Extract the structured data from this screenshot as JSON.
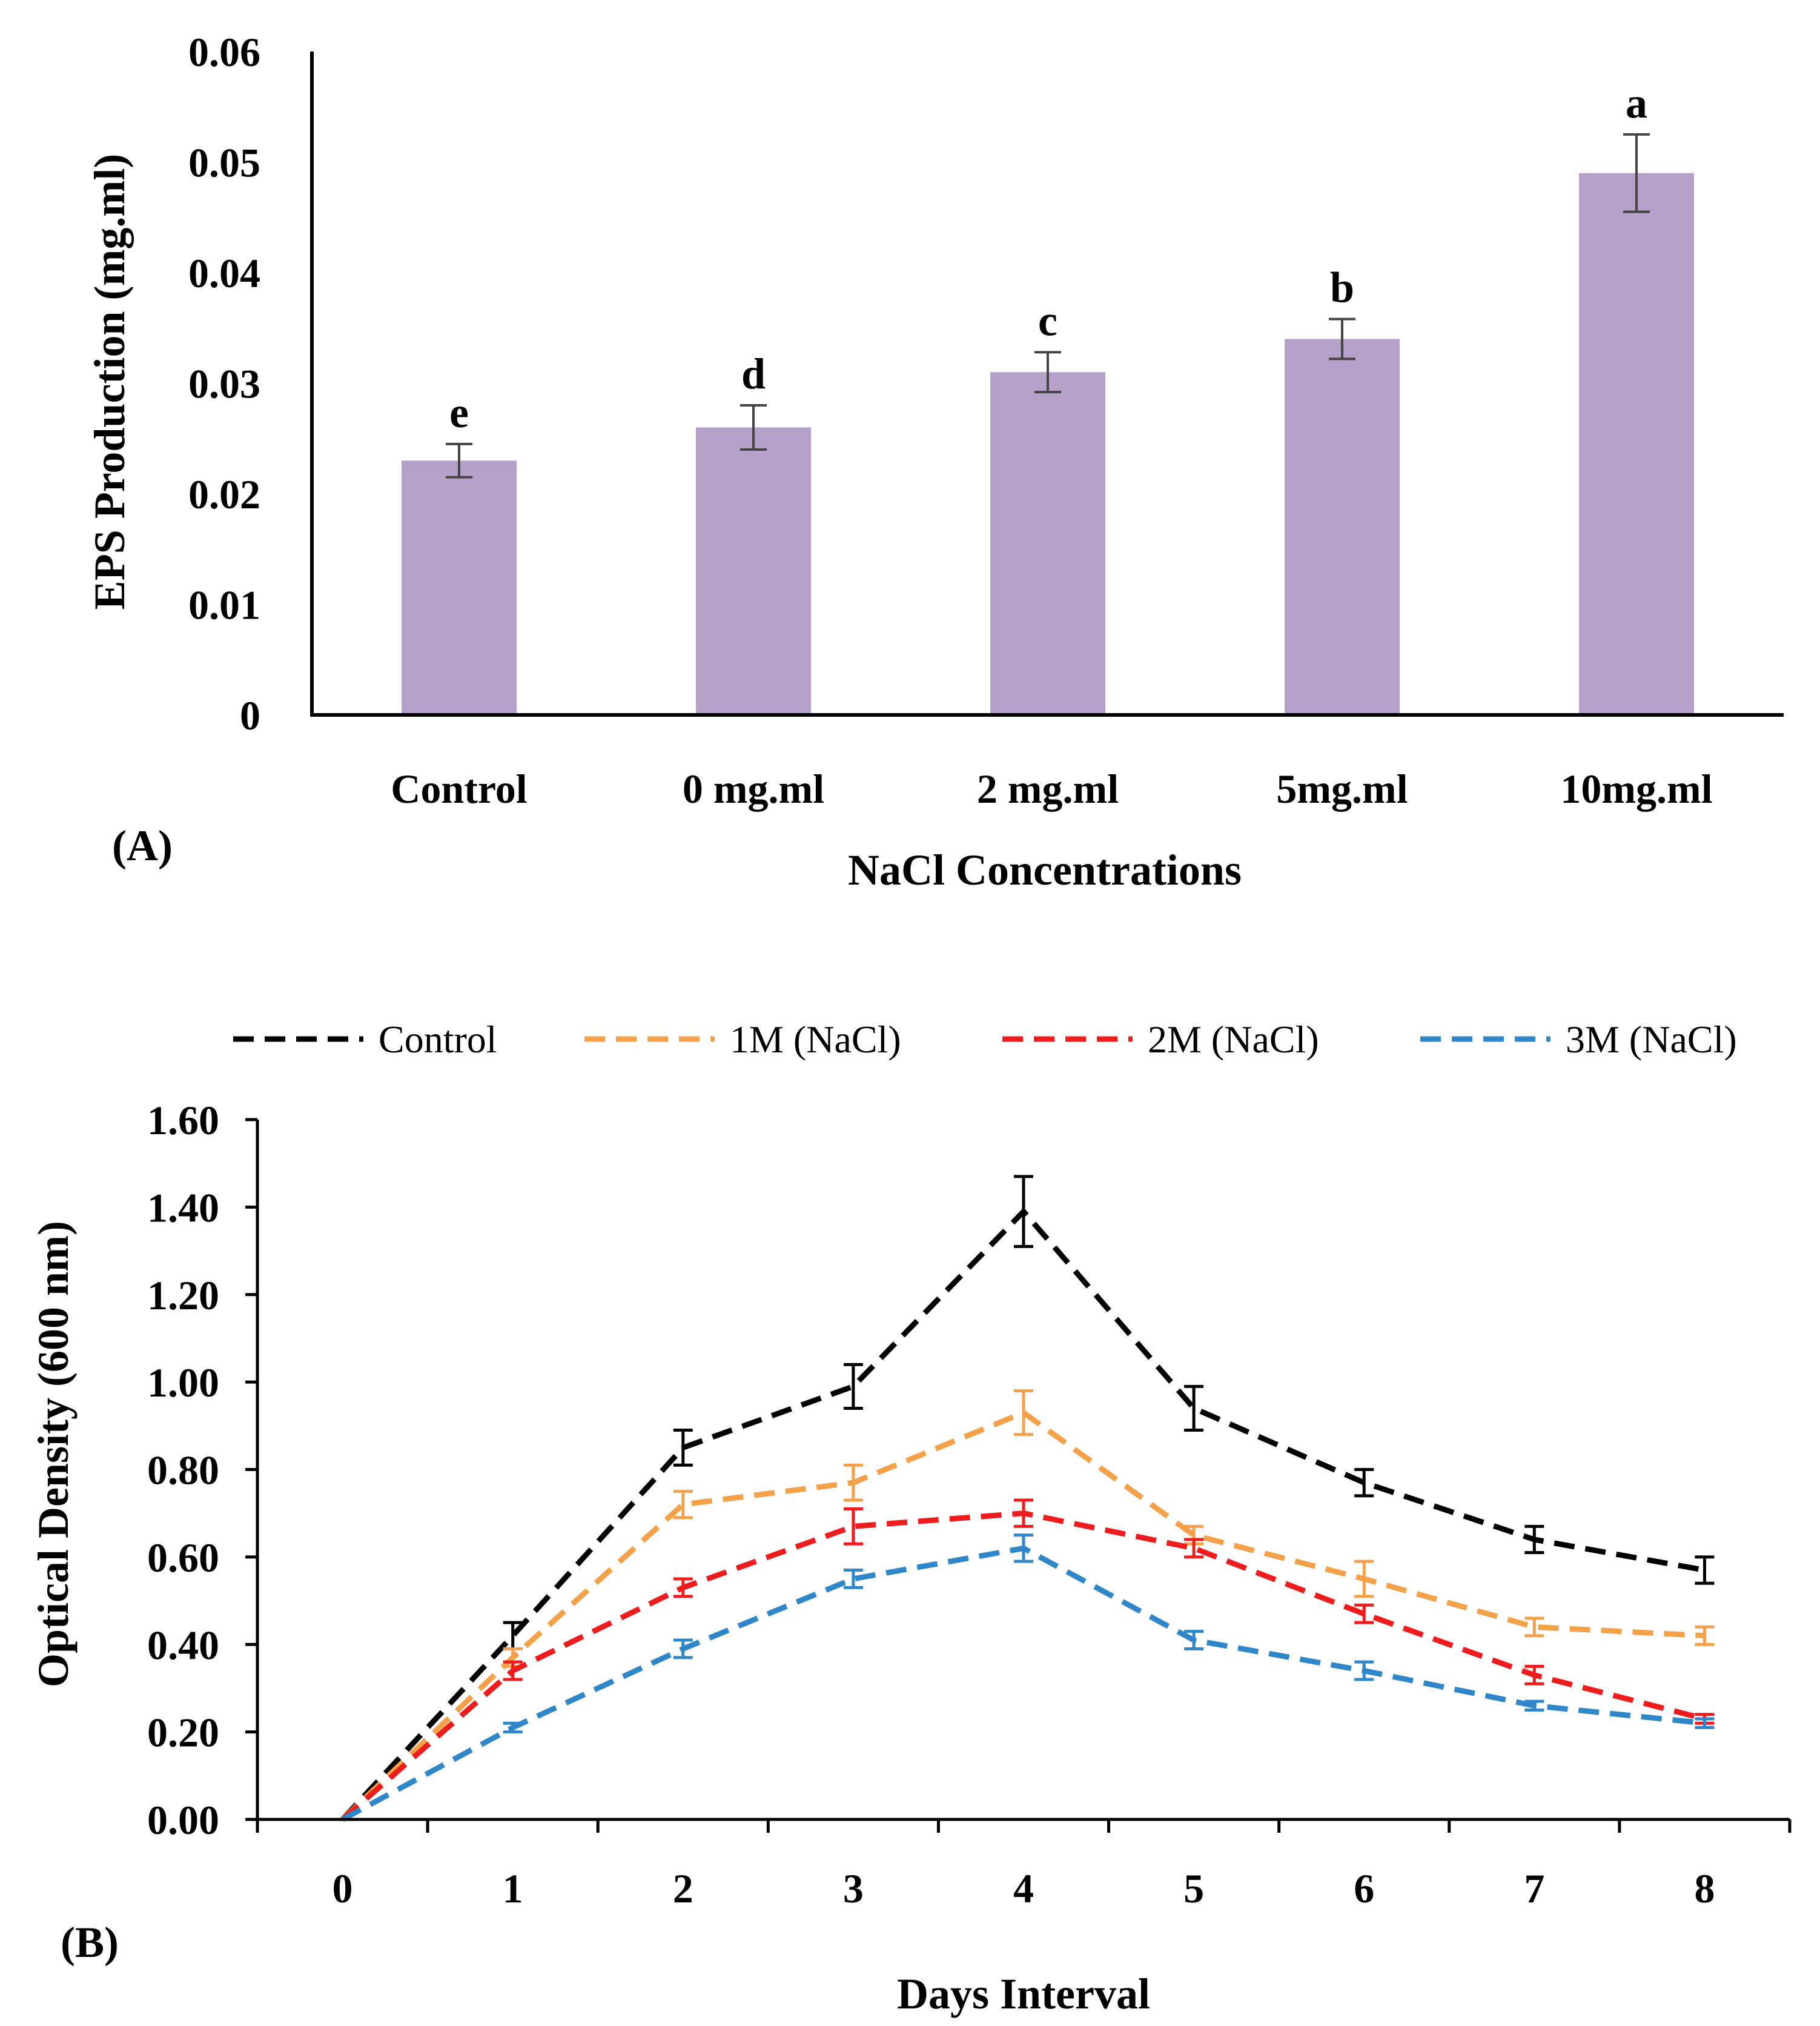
{
  "chart_data": [
    {
      "type": "bar",
      "panel_label": "(A)",
      "title": "",
      "xlabel": "NaCl Concentrations",
      "ylabel": "EPS Production (mg.ml)",
      "categories": [
        "Control",
        "0 mg.ml",
        "2 mg.ml",
        "5mg.ml",
        "10mg.ml"
      ],
      "values": [
        0.023,
        0.026,
        0.031,
        0.034,
        0.049
      ],
      "errors": [
        0.0015,
        0.002,
        0.0018,
        0.0018,
        0.0035
      ],
      "significance_letters": [
        "e",
        "d",
        "c",
        "b",
        "a"
      ],
      "ylim": [
        0,
        0.06
      ],
      "yticks": [
        "0",
        "0.01",
        "0.02",
        "0.03",
        "0.04",
        "0.05",
        "0.06"
      ],
      "ytick_values": [
        0,
        0.01,
        0.02,
        0.03,
        0.04,
        0.05,
        0.06
      ],
      "bar_color": "#b4a0c8",
      "grid": false
    },
    {
      "type": "line",
      "panel_label": "(B)",
      "title": "",
      "xlabel": "Days Interval",
      "ylabel": "Optical Density (600 nm)",
      "x": [
        0,
        1,
        2,
        3,
        4,
        5,
        6,
        7,
        8
      ],
      "xticks": [
        "0",
        "1",
        "2",
        "3",
        "4",
        "5",
        "6",
        "7",
        "8"
      ],
      "ylim": [
        0,
        1.6
      ],
      "yticks": [
        "0.00",
        "0.20",
        "0.40",
        "0.60",
        "0.80",
        "1.00",
        "1.20",
        "1.40",
        "1.60"
      ],
      "ytick_values": [
        0,
        0.2,
        0.4,
        0.6,
        0.8,
        1.0,
        1.2,
        1.4,
        1.6
      ],
      "legend_position": "top",
      "grid": false,
      "series": [
        {
          "name": "Control",
          "color": "#000000",
          "values": [
            0,
            0.42,
            0.85,
            0.99,
            1.39,
            0.94,
            0.77,
            0.64,
            0.57
          ],
          "errors": [
            0,
            0.03,
            0.04,
            0.05,
            0.08,
            0.05,
            0.03,
            0.03,
            0.03
          ]
        },
        {
          "name": "1M (NaCl)",
          "color": "#f4a14a",
          "values": [
            0,
            0.37,
            0.72,
            0.77,
            0.93,
            0.65,
            0.55,
            0.44,
            0.42
          ],
          "errors": [
            0,
            0.02,
            0.03,
            0.04,
            0.05,
            0.02,
            0.04,
            0.02,
            0.02
          ]
        },
        {
          "name": "2M (NaCl)",
          "color": "#ee1c1c",
          "values": [
            0,
            0.34,
            0.53,
            0.67,
            0.7,
            0.62,
            0.47,
            0.33,
            0.23
          ],
          "errors": [
            0,
            0.02,
            0.02,
            0.04,
            0.03,
            0.02,
            0.02,
            0.02,
            0.01
          ]
        },
        {
          "name": "3M (NaCl)",
          "color": "#2f86c8",
          "values": [
            0,
            0.21,
            0.39,
            0.55,
            0.62,
            0.41,
            0.34,
            0.26,
            0.22
          ],
          "errors": [
            0,
            0.01,
            0.02,
            0.02,
            0.03,
            0.02,
            0.02,
            0.01,
            0.01
          ]
        }
      ]
    }
  ]
}
